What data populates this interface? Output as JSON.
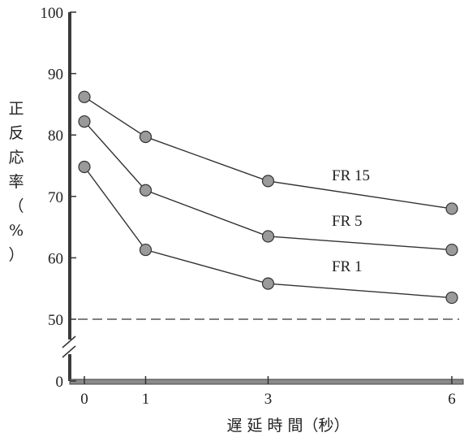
{
  "chart_data": {
    "type": "line",
    "xlabel": "遅 延 時 間（秒）",
    "ylabel": "正反応率（%）",
    "x": [
      0,
      1,
      3,
      6
    ],
    "x_ticks": [
      "0",
      "1",
      "3",
      "6"
    ],
    "xlim": [
      0,
      6
    ],
    "y_ticks": [
      "0",
      "50",
      "60",
      "70",
      "80",
      "90",
      "100"
    ],
    "ylim": [
      50,
      100
    ],
    "y_axis_break": true,
    "grid": false,
    "reference_line": {
      "y": 50,
      "style": "dashed"
    },
    "series": [
      {
        "name": "FR 15",
        "values": [
          86.2,
          79.7,
          72.5,
          68.0
        ]
      },
      {
        "name": "FR 5",
        "values": [
          82.2,
          71.0,
          63.5,
          61.3
        ]
      },
      {
        "name": "FR 1",
        "values": [
          74.8,
          61.3,
          55.8,
          53.5
        ]
      }
    ]
  }
}
